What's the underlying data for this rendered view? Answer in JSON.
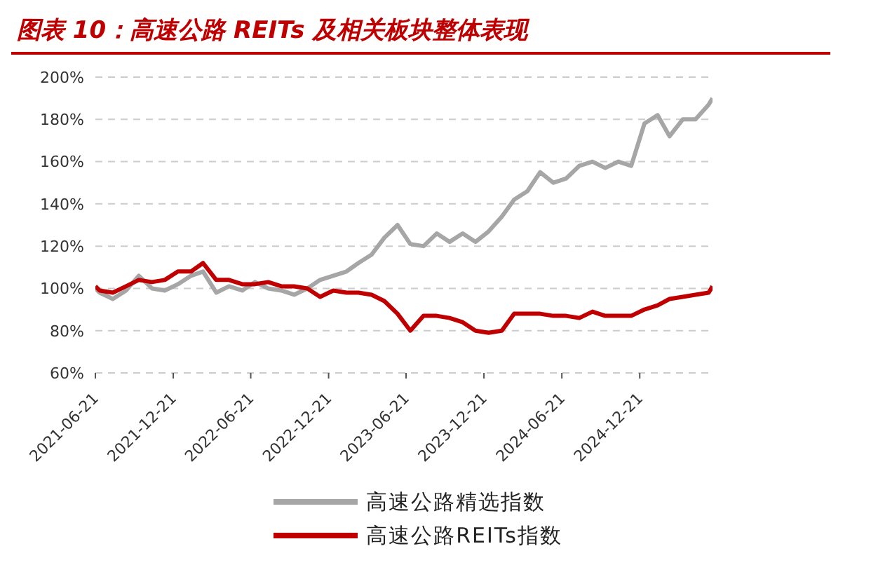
{
  "chart_data": {
    "type": "line",
    "title": "图表 10：高速公路 REITs 及相关板块整体表现",
    "x": [
      "2021-06-21",
      "2021-07",
      "2021-08",
      "2021-09",
      "2021-10",
      "2021-11",
      "2021-12",
      "2022-01",
      "2022-02",
      "2022-03",
      "2022-04",
      "2022-05",
      "2022-06",
      "2022-07",
      "2022-08",
      "2022-09",
      "2022-10",
      "2022-11",
      "2022-12",
      "2023-01",
      "2023-02",
      "2023-03",
      "2023-04",
      "2023-05",
      "2023-06",
      "2023-07",
      "2023-08",
      "2023-09",
      "2023-10",
      "2023-11",
      "2023-12",
      "2024-01",
      "2024-02",
      "2024-03",
      "2024-04",
      "2024-05",
      "2024-06",
      "2024-07",
      "2024-08",
      "2024-09",
      "2024-10",
      "2024-11",
      "2024-12",
      "2025-01",
      "2025-02",
      "2025-03",
      "2025-04",
      "2025-05",
      "2025-06",
      "2025-06-10"
    ],
    "series": [
      {
        "name": "高速公路精选指数",
        "color": "#a6a6a6",
        "values": [
          100,
          98,
          95,
          99,
          106,
          100,
          99,
          102,
          106,
          108,
          98,
          101,
          99,
          103,
          100,
          99,
          97,
          100,
          104,
          106,
          108,
          112,
          116,
          124,
          130,
          121,
          120,
          126,
          122,
          126,
          122,
          127,
          134,
          142,
          146,
          155,
          150,
          152,
          158,
          160,
          157,
          160,
          158,
          178,
          182,
          172,
          180,
          180,
          187,
          190
        ]
      },
      {
        "name": "高速公路REITs指数",
        "color": "#c00000",
        "values": [
          101,
          99,
          98,
          101,
          104,
          103,
          104,
          108,
          108,
          112,
          104,
          104,
          102,
          102,
          103,
          101,
          101,
          100,
          96,
          99,
          98,
          98,
          97,
          94,
          88,
          80,
          87,
          87,
          86,
          84,
          80,
          79,
          80,
          88,
          88,
          88,
          87,
          87,
          86,
          89,
          87,
          87,
          87,
          90,
          92,
          95,
          96,
          97,
          98,
          101
        ]
      }
    ],
    "xlim": [
      "2021-06-21",
      "2025-06-10"
    ],
    "xticks": [
      "2021-06-21",
      "2021-12-21",
      "2022-06-21",
      "2022-12-21",
      "2023-06-21",
      "2023-12-21",
      "2024-06-21",
      "2024-12-21"
    ],
    "ylim": [
      60,
      200
    ],
    "yticks": [
      {
        "value": 60,
        "label": "60%"
      },
      {
        "value": 80,
        "label": "80%"
      },
      {
        "value": 100,
        "label": "100%"
      },
      {
        "value": 120,
        "label": "120%"
      },
      {
        "value": 140,
        "label": "140%"
      },
      {
        "value": 160,
        "label": "160%"
      },
      {
        "value": 180,
        "label": "180%"
      },
      {
        "value": 200,
        "label": "200%"
      }
    ],
    "grid": "y",
    "legend": "bottom",
    "marker": "none",
    "line_style": "solid"
  }
}
